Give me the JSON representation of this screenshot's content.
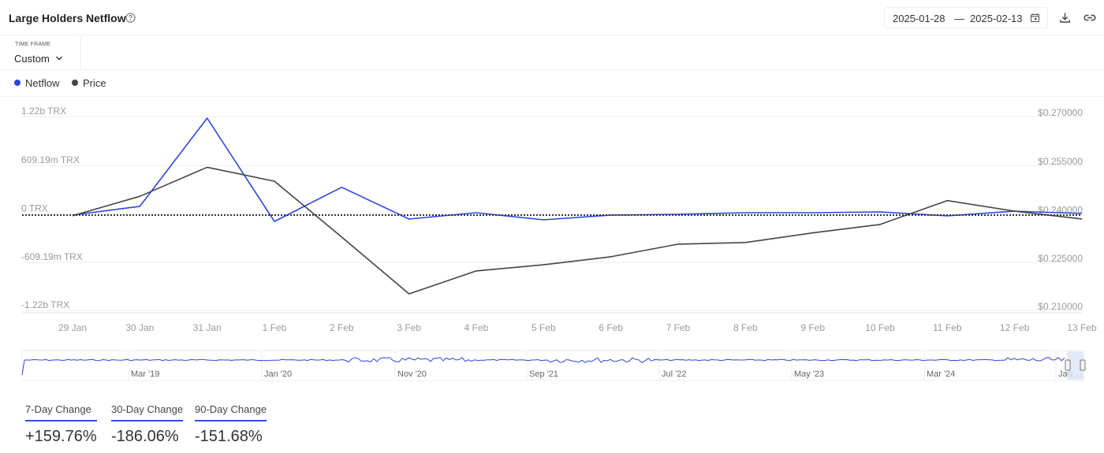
{
  "header": {
    "title": "Large Holders Netflow",
    "date_start": "2025-01-28",
    "date_separator": "—",
    "date_end": "2025-02-13"
  },
  "timeframe": {
    "label": "TIME FRAME",
    "value": "Custom"
  },
  "legend": [
    {
      "name": "Netflow",
      "color": "#2b46d9"
    },
    {
      "name": "Price",
      "color": "#444444"
    }
  ],
  "chart_data": {
    "type": "line",
    "x": [
      "29 Jan",
      "30 Jan",
      "31 Jan",
      "1 Feb",
      "2 Feb",
      "3 Feb",
      "4 Feb",
      "5 Feb",
      "6 Feb",
      "7 Feb",
      "8 Feb",
      "9 Feb",
      "10 Feb",
      "11 Feb",
      "12 Feb",
      "13 Feb"
    ],
    "left_axis": {
      "ticks": [
        "1.22b TRX",
        "609.19m TRX",
        "0 TRX",
        "-609.19m TRX",
        "-1.22b TRX"
      ],
      "ylim": [
        -1220000000,
        1220000000
      ]
    },
    "right_axis": {
      "ticks": [
        "$0.270000",
        "$0.255000",
        "$0.240000",
        "$0.225000",
        "$0.210000"
      ],
      "ylim": [
        0.21,
        0.27
      ]
    },
    "grid": true,
    "zero_line": "dotted",
    "series": [
      {
        "name": "Netflow",
        "axis": "left",
        "color": "#2b46d9",
        "values": [
          0,
          110000000,
          1220000000,
          -80000000,
          350000000,
          -50000000,
          30000000,
          -60000000,
          0,
          10000000,
          30000000,
          30000000,
          40000000,
          -10000000,
          50000000,
          20000000
        ]
      },
      {
        "name": "Price",
        "axis": "right",
        "color": "#444444",
        "values": [
          0.2398,
          0.2458,
          0.2548,
          0.2505,
          0.2332,
          0.2156,
          0.2227,
          0.2246,
          0.2271,
          0.231,
          0.2315,
          0.2345,
          0.2371,
          0.2445,
          0.2412,
          0.2388
        ]
      }
    ]
  },
  "navigator": {
    "labels": [
      "Mar '19",
      "Jan '20",
      "Nov '20",
      "Sep '21",
      "Jul '22",
      "May '23",
      "Mar '24",
      "Jan ..."
    ]
  },
  "stats": [
    {
      "label": "7-Day Change",
      "value": "+159.76%"
    },
    {
      "label": "30-Day Change",
      "value": "-186.06%"
    },
    {
      "label": "90-Day Change",
      "value": "-151.68%"
    }
  ]
}
